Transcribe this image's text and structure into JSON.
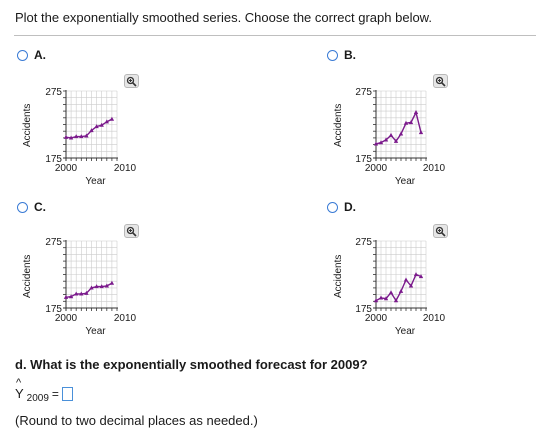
{
  "prompt": "Plot the exponentially smoothed series. Choose the correct graph below.",
  "options": [
    {
      "letter": "A.",
      "ylabel": "Accidents",
      "xlabel": "Year"
    },
    {
      "letter": "B.",
      "ylabel": "Accidents",
      "xlabel": "Year"
    },
    {
      "letter": "C.",
      "ylabel": "Accidents",
      "xlabel": "Year"
    },
    {
      "letter": "D.",
      "ylabel": "Accidents",
      "xlabel": "Year"
    }
  ],
  "colors": {
    "series": "#7b1a8c",
    "grid": "#cccccc",
    "radio": "#3a7bd5"
  },
  "icons": {
    "zoom": "zoom-icon"
  },
  "chart_data": [
    {
      "type": "line",
      "option": "A",
      "x": [
        2000,
        2001,
        2002,
        2003,
        2004,
        2005,
        2006,
        2007,
        2008,
        2009
      ],
      "y": [
        206,
        205,
        207,
        207,
        208,
        216,
        222,
        224,
        229,
        233
      ],
      "ylim": [
        175,
        275
      ],
      "xlim": [
        2000,
        2010
      ],
      "yticks": [
        "275",
        "175"
      ],
      "xticks": [
        "2000",
        "2010"
      ],
      "xlabel": "Year",
      "ylabel": "Accidents"
    },
    {
      "type": "line",
      "option": "B",
      "x": [
        2000,
        2001,
        2002,
        2003,
        2004,
        2005,
        2006,
        2007,
        2008,
        2009
      ],
      "y": [
        196,
        198,
        202,
        209,
        200,
        211,
        227,
        228,
        243,
        213
      ],
      "ylim": [
        175,
        275
      ],
      "xlim": [
        2000,
        2010
      ],
      "yticks": [
        "275",
        "175"
      ],
      "xticks": [
        "2000",
        "2010"
      ],
      "xlabel": "Year",
      "ylabel": "Accidents"
    },
    {
      "type": "line",
      "option": "C",
      "x": [
        2000,
        2001,
        2002,
        2003,
        2004,
        2005,
        2006,
        2007,
        2008,
        2009
      ],
      "y": [
        191,
        192,
        196,
        196,
        197,
        205,
        207,
        207,
        208,
        212
      ],
      "ylim": [
        175,
        275
      ],
      "xlim": [
        2000,
        2010
      ],
      "yticks": [
        "275",
        "175"
      ],
      "xticks": [
        "2000",
        "2010"
      ],
      "xlabel": "Year",
      "ylabel": "Accidents"
    },
    {
      "type": "line",
      "option": "D",
      "x": [
        2000,
        2001,
        2002,
        2003,
        2004,
        2005,
        2006,
        2007,
        2008,
        2009
      ],
      "y": [
        186,
        190,
        189,
        198,
        186,
        200,
        217,
        208,
        225,
        222
      ],
      "ylim": [
        175,
        275
      ],
      "xlim": [
        2000,
        2010
      ],
      "yticks": [
        "275",
        "175"
      ],
      "xticks": [
        "2000",
        "2010"
      ],
      "xlabel": "Year",
      "ylabel": "Accidents"
    }
  ],
  "question_d": "d. What is the exponentially smoothed forecast for 2009?",
  "answer": {
    "symbol": "Y",
    "hat": "^",
    "subscript": "2009",
    "equals": "=",
    "value": ""
  },
  "note": "(Round to two decimal places as needed.)"
}
